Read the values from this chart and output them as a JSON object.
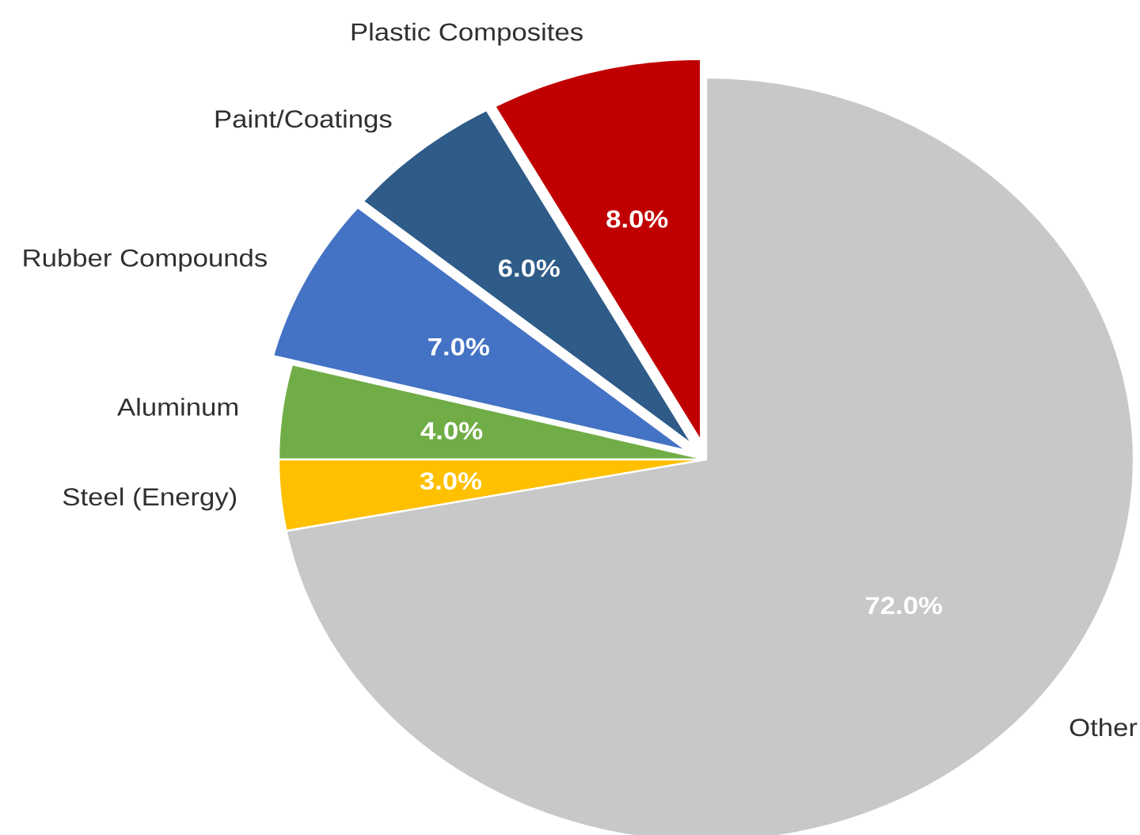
{
  "chart_data": {
    "type": "pie",
    "categories": [
      "Plastic Composites",
      "Paint/Coatings",
      "Rubber Compounds",
      "Aluminum",
      "Steel (Energy)",
      "Other"
    ],
    "values": [
      8,
      6,
      7,
      4,
      3,
      72
    ],
    "value_labels": [
      "8.0%",
      "6.0%",
      "7.0%",
      "4.0%",
      "3.0%",
      "72.0%"
    ],
    "colors": [
      "#c00000",
      "#2e5b88",
      "#4472c4",
      "#70ad47",
      "#ffc000",
      "#c8c8c8"
    ]
  }
}
